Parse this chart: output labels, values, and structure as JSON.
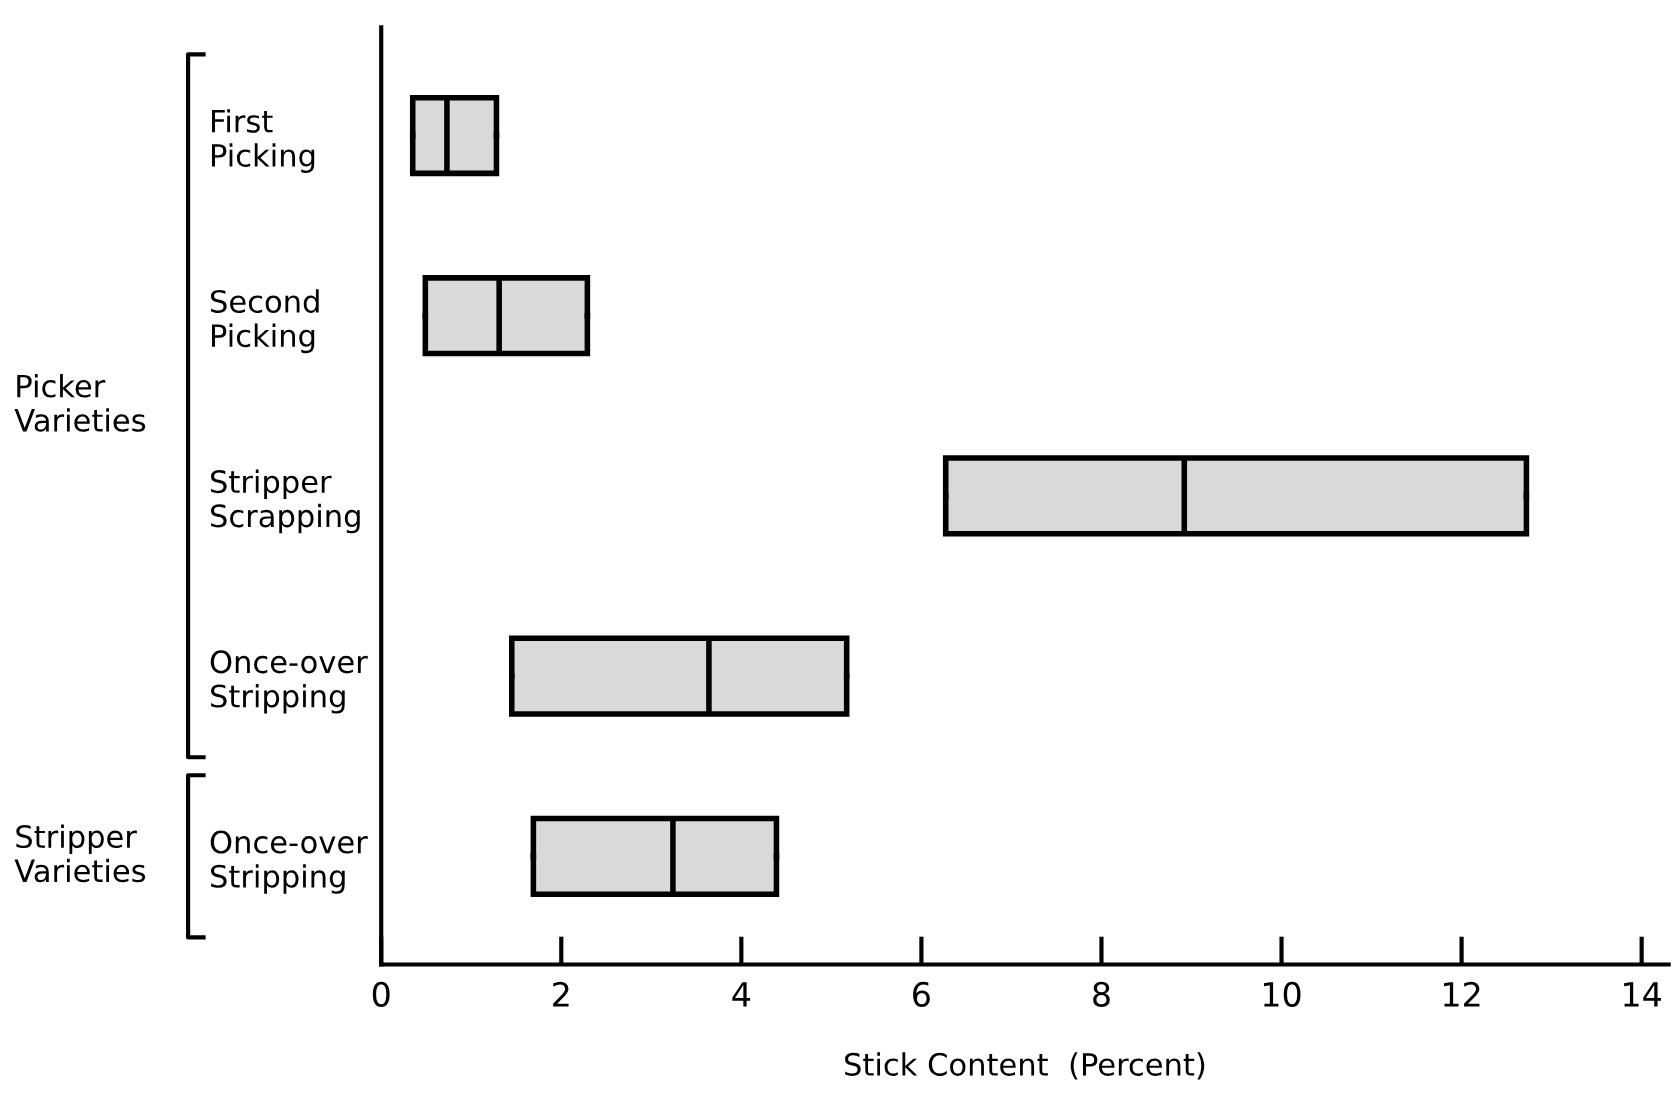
{
  "chart_data": {
    "type": "box",
    "orientation": "horizontal",
    "xlabel": "Stick Content  (Percent)",
    "categories": [
      "First Picking",
      "Second Picking",
      "Stripper Scrapping",
      "Once-over Stripping",
      "Once-over Stripping"
    ],
    "boxes": [
      {
        "low": 0.35,
        "q1": 0.35,
        "median": 0.73,
        "q3": 1.28,
        "high": 1.28
      },
      {
        "low": 0.49,
        "q1": 0.49,
        "median": 1.31,
        "q3": 2.29,
        "high": 2.29
      },
      {
        "low": 6.27,
        "q1": 6.27,
        "median": 8.92,
        "q3": 12.72,
        "high": 12.72
      },
      {
        "low": 1.45,
        "q1": 1.45,
        "median": 3.64,
        "q3": 5.17,
        "high": 5.17
      },
      {
        "low": 1.69,
        "q1": 1.69,
        "median": 3.24,
        "q3": 4.39,
        "high": 4.39
      }
    ],
    "color": "#d9d9d9",
    "xlim": [
      0,
      14.3
    ],
    "xticks": [
      0,
      2,
      4,
      6,
      8,
      10,
      12,
      14
    ],
    "annotations": [
      "Picker Varieties",
      "Stripper Varieties"
    ],
    "grid": false,
    "legend": false
  }
}
